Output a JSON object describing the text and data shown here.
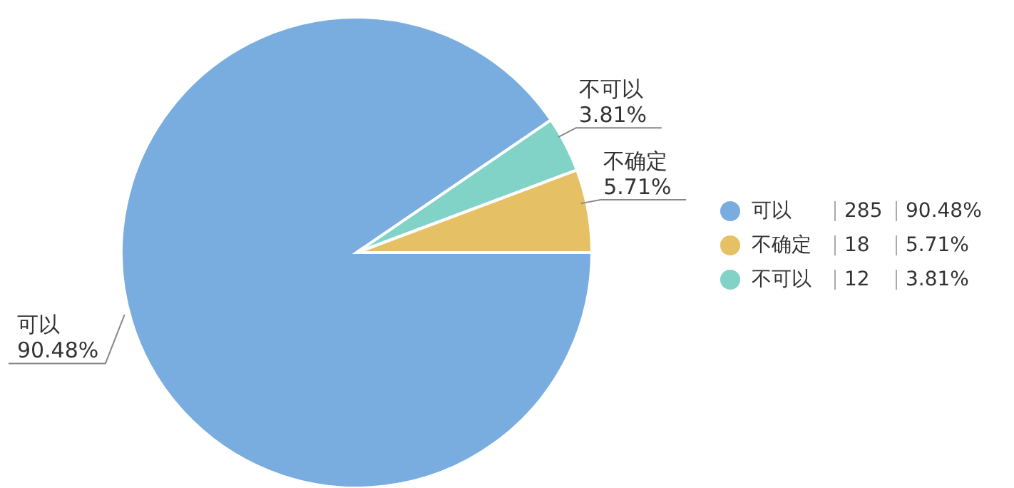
{
  "chart_data": {
    "type": "pie",
    "categories": [
      "可以",
      "不确定",
      "不可以"
    ],
    "values": [
      90.48,
      5.71,
      3.81
    ],
    "value_labels": [
      "90.48%",
      "5.71%",
      "3.81%"
    ],
    "colors": [
      "#7aaddf",
      "#e6c065",
      "#80d3c6"
    ],
    "annotations": [
      "285",
      "18",
      "12"
    ],
    "legend": "right"
  }
}
